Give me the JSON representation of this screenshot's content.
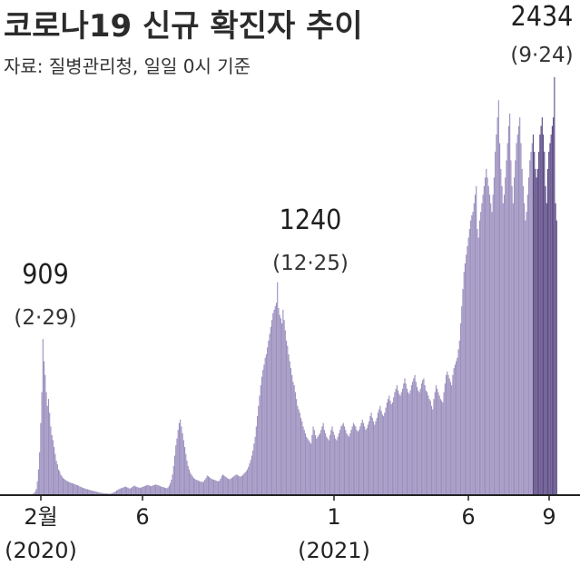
{
  "header": {
    "title": "코로나19 신규 확진자 추이",
    "source": "자료: 질병관리청, 일일 0시 기준"
  },
  "chart_data": {
    "type": "bar",
    "title": "코로나19 신규 확진자 추이",
    "xlabel": "",
    "ylabel": "",
    "ylim": [
      0,
      2434
    ],
    "x_ticks": [
      {
        "label": "2월",
        "sub": "(2020)"
      },
      {
        "label": "6",
        "sub": ""
      },
      {
        "label": "1",
        "sub": "(2021)"
      },
      {
        "label": "6",
        "sub": ""
      },
      {
        "label": "9",
        "sub": ""
      }
    ],
    "annotations": [
      {
        "value": "909",
        "date": "(2·29)"
      },
      {
        "value": "1240",
        "date": "(12·25)"
      },
      {
        "value": "2434",
        "date": "(9·24)"
      }
    ],
    "series": [
      {
        "values": [
          2,
          3,
          5,
          8,
          10,
          20,
          35,
          80,
          150,
          250,
          420,
          600,
          909,
          780,
          700,
          600,
          520,
          560,
          480,
          400,
          350,
          320,
          280,
          240,
          200,
          180,
          150,
          140,
          120,
          110,
          100,
          95,
          90,
          85,
          80,
          78,
          75,
          72,
          70,
          68,
          65,
          62,
          60,
          58,
          55,
          50,
          48,
          45,
          42,
          40,
          38,
          35,
          34,
          32,
          30,
          28,
          26,
          25,
          24,
          22,
          20,
          18,
          17,
          15,
          14,
          12,
          12,
          11,
          10,
          10,
          9,
          9,
          8,
          10,
          12,
          15,
          18,
          22,
          28,
          30,
          35,
          38,
          40,
          42,
          45,
          48,
          50,
          46,
          44,
          40,
          38,
          42,
          48,
          52,
          55,
          50,
          48,
          46,
          44,
          42,
          45,
          48,
          50,
          52,
          55,
          58,
          60,
          56,
          54,
          52,
          55,
          58,
          60,
          62,
          60,
          58,
          55,
          52,
          50,
          48,
          46,
          44,
          42,
          40,
          45,
          55,
          70,
          90,
          120,
          170,
          230,
          290,
          330,
          380,
          420,
          440,
          400,
          360,
          320,
          280,
          240,
          200,
          170,
          150,
          130,
          120,
          110,
          100,
          95,
          90,
          88,
          85,
          82,
          80,
          78,
          76,
          80,
          90,
          100,
          115,
          110,
          105,
          100,
          95,
          92,
          90,
          88,
          85,
          82,
          80,
          85,
          95,
          110,
          120,
          115,
          110,
          105,
          100,
          95,
          92,
          96,
          100,
          105,
          110,
          115,
          120,
          118,
          114,
          110,
          108,
          112,
          118,
          125,
          132,
          140,
          150,
          165,
          185,
          205,
          230,
          260,
          300,
          340,
          400,
          460,
          520,
          580,
          640,
          690,
          730,
          760,
          800,
          820,
          860,
          900,
          940,
          980,
          1020,
          1060,
          1080,
          1100,
          1120,
          1240,
          1090,
          1050,
          1030,
          1000,
          1080,
          1020,
          960,
          900,
          870,
          820,
          780,
          740,
          700,
          660,
          640,
          600,
          560,
          520,
          500,
          480,
          450,
          430,
          400,
          380,
          360,
          340,
          330,
          320,
          310,
          300,
          350,
          400,
          380,
          350,
          330,
          340,
          350,
          360,
          380,
          400,
          420,
          380,
          360,
          340,
          330,
          320,
          350,
          380,
          400,
          370,
          350,
          330,
          320,
          340,
          360,
          380,
          400,
          410,
          420,
          400,
          380,
          360,
          350,
          340,
          360,
          380,
          400,
          420,
          410,
          400,
          380,
          370,
          380,
          400,
          420,
          440,
          420,
          400,
          380,
          390,
          410,
          430,
          460,
          480,
          450,
          430,
          410,
          430,
          450,
          480,
          500,
          520,
          490,
          470,
          460,
          480,
          510,
          540,
          560,
          580,
          550,
          530,
          540,
          570,
          600,
          620,
          640,
          610,
          590,
          580,
          600,
          620,
          650,
          680,
          650,
          620,
          600,
          590,
          610,
          640,
          660,
          680,
          700,
          660,
          630,
          610,
          600,
          620,
          650,
          670,
          680,
          640,
          610,
          600,
          580,
          560,
          550,
          520,
          500,
          560,
          600,
          640,
          620,
          600,
          580,
          560,
          550,
          540,
          600,
          650,
          700,
          720,
          700,
          680,
          660,
          640,
          700,
          740,
          760,
          780,
          800,
          850,
          900,
          1000,
          1100,
          1200,
          1300,
          1350,
          1400,
          1450,
          1500,
          1550,
          1600,
          1630,
          1650,
          1700,
          1750,
          1800,
          1550,
          1500,
          1600,
          1650,
          1700,
          1750,
          1800,
          1850,
          1900,
          1850,
          1800,
          1750,
          1700,
          1650,
          1750,
          1850,
          2000,
          2100,
          2200,
          2300,
          2050,
          1900,
          1800,
          1700,
          1750,
          1850,
          1950,
          2050,
          2150,
          2223,
          1950,
          1800,
          1700,
          1850,
          1950,
          2050,
          2100,
          2150,
          2200,
          2050,
          1900,
          1800,
          1700,
          1600,
          1650,
          1750,
          1850,
          1950,
          2000,
          2050,
          2100,
          2000,
          1900,
          1850,
          1900,
          2000,
          2100,
          2150,
          2200,
          2100,
          2000,
          1800,
          1700,
          1900,
          2000,
          2050,
          2100,
          2150,
          2200,
          2434,
          1700,
          1600
        ]
      }
    ]
  },
  "colors": {
    "bar": "#9b8fbe",
    "bar_recent": "#5b4a85",
    "axis": "#222222",
    "text": "#222222"
  }
}
